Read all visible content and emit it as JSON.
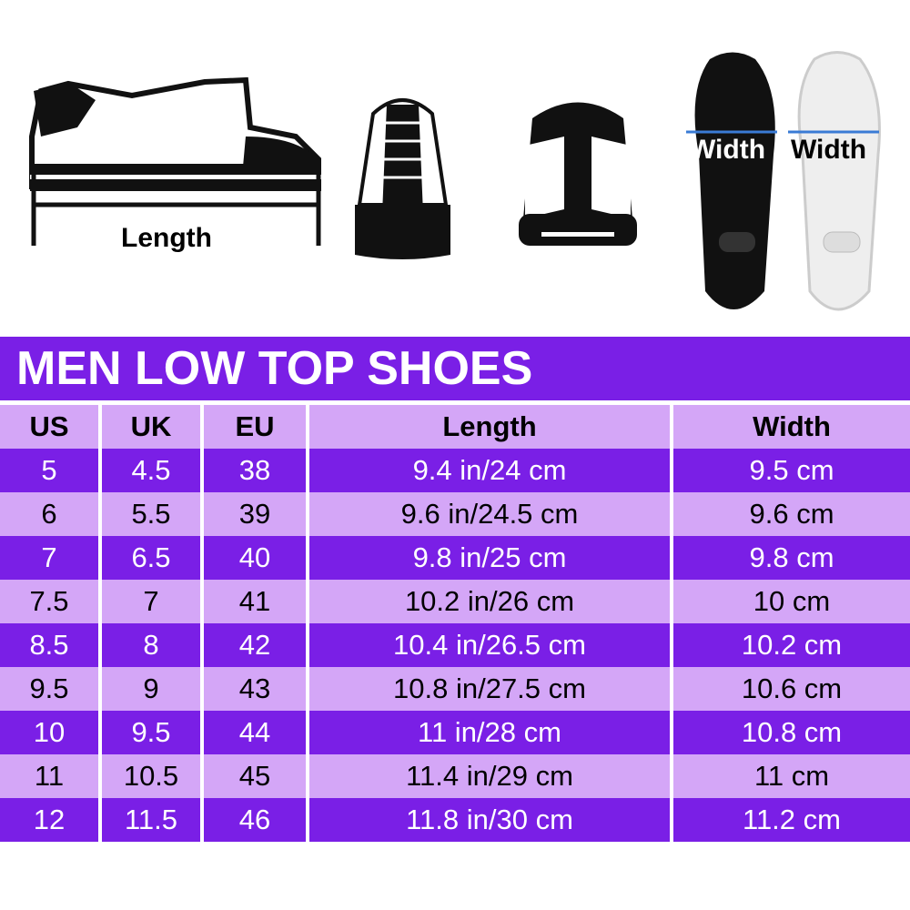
{
  "illustrations": {
    "length_label": "Length",
    "width_label_left": "Width",
    "width_label_right": "Width"
  },
  "title": "MEN LOW TOP SHOES",
  "colors": {
    "dark_purple": "#7a1fe6",
    "light_purple": "#d4a6f7",
    "arrow_blue": "#3a7bd5"
  },
  "table": {
    "headers": [
      "US",
      "UK",
      "EU",
      "Length",
      "Width"
    ],
    "rows": [
      [
        "5",
        "4.5",
        "38",
        "9.4 in/24 cm",
        "9.5 cm"
      ],
      [
        "6",
        "5.5",
        "39",
        "9.6 in/24.5 cm",
        "9.6 cm"
      ],
      [
        "7",
        "6.5",
        "40",
        "9.8 in/25 cm",
        "9.8 cm"
      ],
      [
        "7.5",
        "7",
        "41",
        "10.2 in/26 cm",
        "10 cm"
      ],
      [
        "8.5",
        "8",
        "42",
        "10.4 in/26.5 cm",
        "10.2 cm"
      ],
      [
        "9.5",
        "9",
        "43",
        "10.8 in/27.5 cm",
        "10.6 cm"
      ],
      [
        "10",
        "9.5",
        "44",
        "11 in/28 cm",
        "10.8 cm"
      ],
      [
        "11",
        "10.5",
        "45",
        "11.4 in/29 cm",
        "11 cm"
      ],
      [
        "12",
        "11.5",
        "46",
        "11.8 in/30 cm",
        "11.2 cm"
      ]
    ]
  }
}
